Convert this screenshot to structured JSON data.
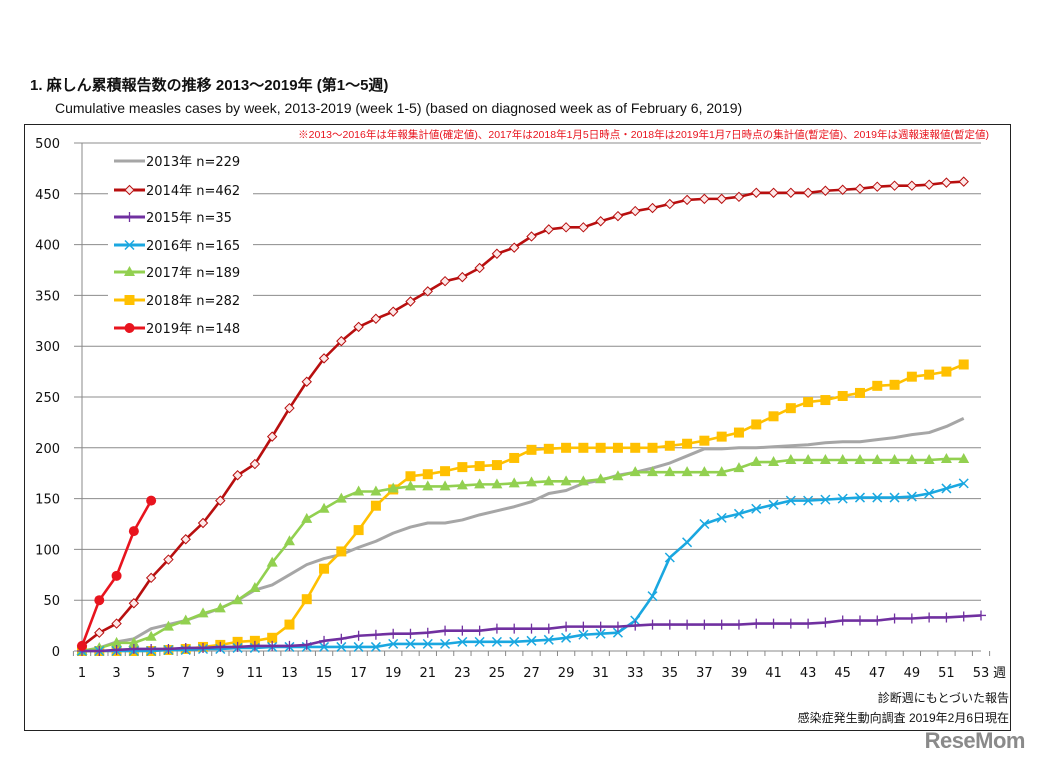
{
  "title": "1. 麻しん累積報告数の推移  2013〜2019年 (第1〜5週)",
  "subtitle": "Cumulative measles cases by week, 2013-2019 (week 1-5)  (based on diagnosed week as of February 6, 2019)",
  "note": "※2013〜2016年は年報集計値(確定値)、2017年は2018年1月5日時点・2018年は2019年1月7日時点の集計値(暫定値)、2019年は週報速報値(暫定値)",
  "footer": {
    "line1": "診断週にもとづいた報告",
    "line2": "感染症発生動向調査 2019年2月6日現在"
  },
  "logo": "ReseMom",
  "chart_data": {
    "type": "line",
    "xlabel": "週",
    "ylabel": "",
    "xlim": [
      1,
      53
    ],
    "ylim": [
      0,
      500
    ],
    "y_ticks": [
      0,
      50,
      100,
      150,
      200,
      250,
      300,
      350,
      400,
      450,
      500
    ],
    "x_tick_labels": [
      "1",
      "3",
      "5",
      "7",
      "9",
      "11",
      "13",
      "15",
      "17",
      "19",
      "21",
      "23",
      "25",
      "27",
      "29",
      "31",
      "33",
      "35",
      "37",
      "39",
      "41",
      "43",
      "45",
      "47",
      "49",
      "51",
      "53"
    ],
    "grid": "horizontal",
    "legend_position": "top-left",
    "series": [
      {
        "name": "2013年 n=229",
        "color": "#a6a6a6",
        "marker": "none",
        "values": [
          0,
          3,
          9,
          12,
          22,
          26,
          30,
          36,
          42,
          50,
          60,
          65,
          75,
          85,
          91,
          95,
          102,
          108,
          116,
          122,
          126,
          126,
          129,
          134,
          138,
          142,
          147,
          155,
          158,
          165,
          168,
          173,
          176,
          180,
          185,
          192,
          199,
          199,
          200,
          200,
          201,
          202,
          203,
          205,
          206,
          206,
          208,
          210,
          213,
          215,
          221,
          229
        ]
      },
      {
        "name": "2014年 n=462",
        "color": "#b80f0f",
        "marker": "diamond",
        "values": [
          5,
          18,
          27,
          47,
          72,
          90,
          110,
          126,
          148,
          173,
          184,
          211,
          239,
          265,
          288,
          305,
          319,
          327,
          334,
          344,
          354,
          364,
          368,
          377,
          391,
          397,
          408,
          415,
          417,
          417,
          423,
          428,
          433,
          436,
          440,
          444,
          445,
          445,
          447,
          451,
          451,
          451,
          451,
          453,
          454,
          455,
          457,
          458,
          458,
          459,
          461,
          462
        ]
      },
      {
        "name": "2015年 n=35",
        "color": "#7030a0",
        "marker": "plus",
        "values": [
          0,
          0,
          1,
          2,
          2,
          2,
          3,
          3,
          4,
          4,
          5,
          5,
          5,
          6,
          10,
          12,
          15,
          16,
          17,
          17,
          18,
          20,
          20,
          20,
          22,
          22,
          22,
          22,
          24,
          24,
          24,
          24,
          25,
          26,
          26,
          26,
          26,
          26,
          26,
          27,
          27,
          27,
          27,
          28,
          30,
          30,
          30,
          32,
          32,
          33,
          33,
          34,
          35
        ]
      },
      {
        "name": "2016年 n=165",
        "color": "#1aa7e0",
        "marker": "x",
        "values": [
          0,
          0,
          0,
          0,
          0,
          1,
          1,
          2,
          2,
          3,
          3,
          4,
          4,
          4,
          4,
          4,
          4,
          4,
          7,
          7,
          7,
          7,
          9,
          9,
          9,
          9,
          10,
          11,
          13,
          16,
          17,
          18,
          30,
          54,
          92,
          107,
          125,
          131,
          135,
          140,
          144,
          148,
          148,
          149,
          150,
          151,
          151,
          151,
          152,
          155,
          160,
          165
        ]
      },
      {
        "name": "2017年 n=189",
        "color": "#92d050",
        "marker": "triangle",
        "values": [
          0,
          3,
          8,
          8,
          14,
          24,
          30,
          37,
          42,
          50,
          62,
          87,
          108,
          130,
          140,
          150,
          157,
          157,
          160,
          162,
          162,
          162,
          163,
          164,
          164,
          165,
          166,
          167,
          167,
          167,
          169,
          172,
          176,
          176,
          176,
          176,
          176,
          176,
          180,
          186,
          186,
          188,
          188,
          188,
          188,
          188,
          188,
          188,
          188,
          188,
          189,
          189
        ]
      },
      {
        "name": "2018年 n=282",
        "color": "#ffc000",
        "marker": "square",
        "values": [
          0,
          0,
          0,
          0,
          0,
          1,
          2,
          4,
          6,
          9,
          10,
          13,
          26,
          51,
          81,
          98,
          119,
          143,
          159,
          172,
          174,
          177,
          181,
          182,
          183,
          190,
          198,
          199,
          200,
          200,
          200,
          200,
          200,
          200,
          202,
          204,
          207,
          211,
          215,
          223,
          231,
          239,
          245,
          247,
          251,
          254,
          261,
          262,
          270,
          272,
          275,
          282
        ]
      },
      {
        "name": "2019年 n=148",
        "color": "#e8141e",
        "marker": "circle",
        "values": [
          5,
          50,
          74,
          118,
          148
        ]
      }
    ]
  }
}
